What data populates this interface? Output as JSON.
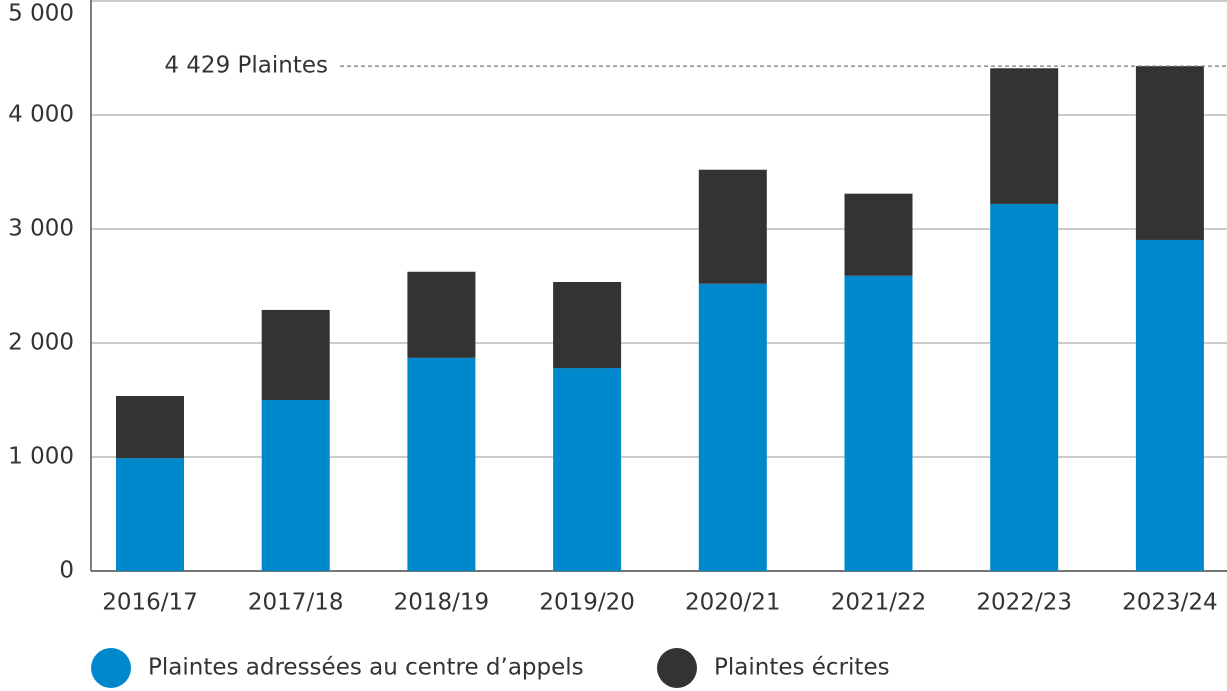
{
  "chart_data": {
    "type": "stacked_bar",
    "categories": [
      "2016/17",
      "2017/18",
      "2018/19",
      "2019/20",
      "2020/21",
      "2021/22",
      "2022/23",
      "2023/24"
    ],
    "series": [
      {
        "name": "Plaintes adressées au centre d’appels",
        "color": "#0088cc",
        "values": [
          990,
          1500,
          1870,
          1780,
          2520,
          2590,
          3220,
          2904
        ]
      },
      {
        "name": "Plaintes écrites",
        "color": "#333333",
        "values": [
          545,
          790,
          755,
          755,
          1000,
          720,
          1190,
          1525
        ]
      }
    ],
    "ylim": [
      0,
      5000
    ],
    "yticks": [
      0,
      {
        "value": 1000,
        "label": "1 000"
      },
      {
        "value": 2000,
        "label": "2 000"
      },
      {
        "value": 3000,
        "label": "3 000"
      },
      {
        "value": 4000,
        "label": "4 000"
      },
      {
        "value": 5000,
        "label": "5 000"
      }
    ],
    "grid": true,
    "reference_line": 4429,
    "annotation": "4 429 Plaintes",
    "legend": "bottom-left"
  }
}
